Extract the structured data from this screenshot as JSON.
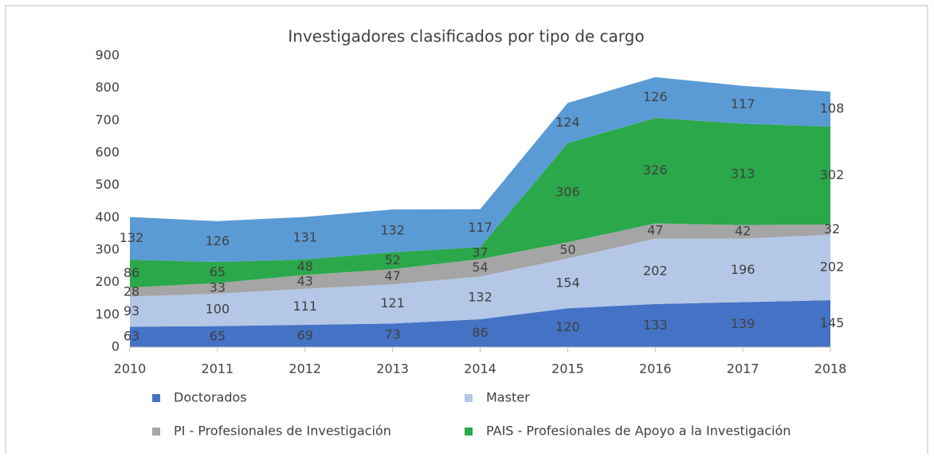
{
  "chart_data": {
    "type": "area",
    "stacked": true,
    "title": "Investigadores clasificados por tipo de cargo",
    "categories": [
      "2010",
      "2011",
      "2012",
      "2013",
      "2014",
      "2015",
      "2016",
      "2017",
      "2018"
    ],
    "series": [
      {
        "name": "Doctorados",
        "color": "#4472c4",
        "values": [
          63,
          65,
          69,
          73,
          86,
          120,
          133,
          139,
          145
        ]
      },
      {
        "name": "Master",
        "color": "#b4c7e7",
        "values": [
          93,
          100,
          111,
          121,
          132,
          154,
          202,
          196,
          202
        ]
      },
      {
        "name": "PI - Profesionales de Investigación",
        "color": "#a5a5a5",
        "values": [
          28,
          33,
          43,
          47,
          54,
          50,
          47,
          42,
          32
        ]
      },
      {
        "name": "PAIS - Profesionales de Apoyo a la Investigación",
        "color": "#2aa84a",
        "values": [
          86,
          65,
          48,
          52,
          37,
          306,
          326,
          313,
          302
        ]
      },
      {
        "color": "#5b9bd5",
        "values": [
          132,
          126,
          131,
          132,
          117,
          124,
          126,
          117,
          108
        ]
      }
    ],
    "ylim": [
      0,
      900
    ],
    "yticks": [
      0,
      100,
      200,
      300,
      400,
      500,
      600,
      700,
      800,
      900
    ],
    "legend": "bottom"
  }
}
